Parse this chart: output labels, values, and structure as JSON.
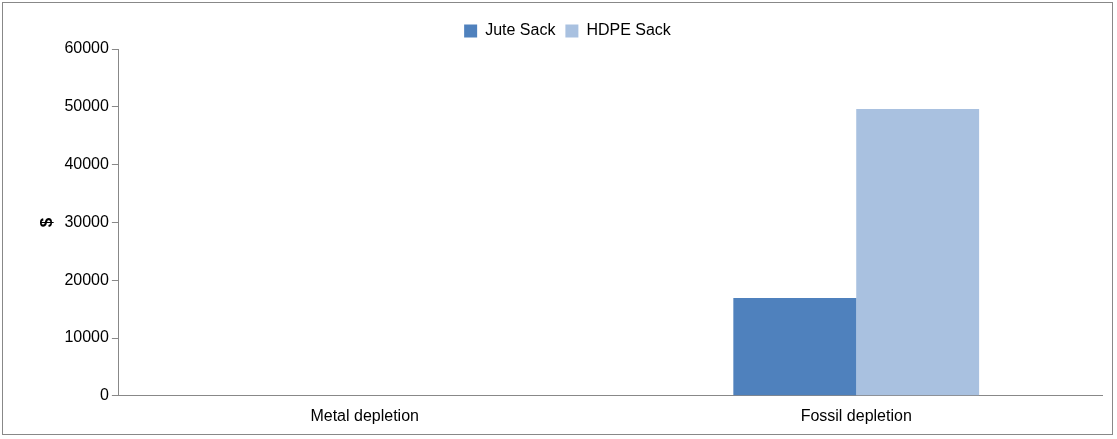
{
  "chart_data": {
    "type": "bar",
    "categories": [
      "Metal depletion",
      "Fossil depletion"
    ],
    "series": [
      {
        "name": "Jute Sack",
        "color": "#4f81bd",
        "values": [
          0,
          16900
        ]
      },
      {
        "name": "HDPE Sack",
        "color": "#a9c1e0",
        "values": [
          0,
          49600
        ]
      }
    ],
    "ylabel": "$",
    "ylim": [
      0,
      60000
    ],
    "yticks": [
      0,
      10000,
      20000,
      30000,
      40000,
      50000,
      60000
    ],
    "grid": false,
    "legend": "top"
  }
}
